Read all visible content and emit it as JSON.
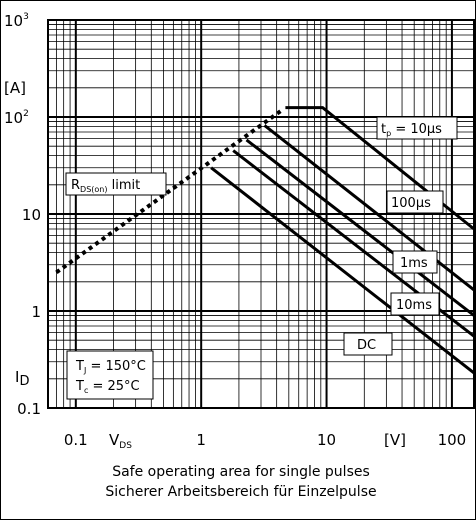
{
  "chart_data": {
    "type": "line",
    "title": "",
    "caption": [
      "Safe operating area for single pulses",
      "Sicherer Arbeitsbereich für Einzelpulse"
    ],
    "x_axis": {
      "scale": "log",
      "range": [
        0.06,
        150
      ],
      "symbol": "V",
      "subscript": "DS",
      "unit": "[V]",
      "ticks": [
        {
          "value": 0.1,
          "label": "0.1"
        },
        {
          "value": 1,
          "label": "1"
        },
        {
          "value": 10,
          "label": "10"
        },
        {
          "value": 100,
          "label": "100"
        }
      ]
    },
    "y_axis": {
      "scale": "log",
      "range": [
        0.1,
        1000
      ],
      "symbol": "I",
      "subscript": "D",
      "unit": "[A]",
      "ticks": [
        {
          "value": 0.1,
          "label": "0.1"
        },
        {
          "value": 1,
          "label": "1"
        },
        {
          "value": 10,
          "label": "10"
        },
        {
          "value": 100,
          "label": "100"
        },
        {
          "value": 1000,
          "label": "1000"
        }
      ]
    },
    "grid": true,
    "rds_limit": {
      "label_main": "R",
      "label_sub": "DS(on)",
      "label_tail": " limit",
      "points": [
        [
          0.07,
          2.5
        ],
        [
          4.5,
          120
        ]
      ]
    },
    "series": [
      {
        "name": "tp = 10µs",
        "label_prefix": "t",
        "label_sub": "p",
        "label_tail": " = 10µs",
        "points": [
          [
            4.7,
            125
          ],
          [
            9.3,
            125
          ],
          [
            150,
            7
          ]
        ]
      },
      {
        "name": "100µs",
        "points": [
          [
            3.2,
            82
          ],
          [
            150,
            1.65
          ]
        ]
      },
      {
        "name": "1ms",
        "points": [
          [
            2.3,
            58
          ],
          [
            150,
            0.9
          ]
        ]
      },
      {
        "name": "10ms",
        "points": [
          [
            1.8,
            45
          ],
          [
            150,
            0.55
          ]
        ]
      },
      {
        "name": "DC",
        "points": [
          [
            1.2,
            30
          ],
          [
            150,
            0.23
          ]
        ]
      }
    ],
    "conditions": {
      "tj_main": "T",
      "tj_sub": "J",
      "tj_tail": " = 150°C",
      "tc_main": "T",
      "tc_sub": "c",
      "tc_tail": " = 25°C"
    }
  }
}
